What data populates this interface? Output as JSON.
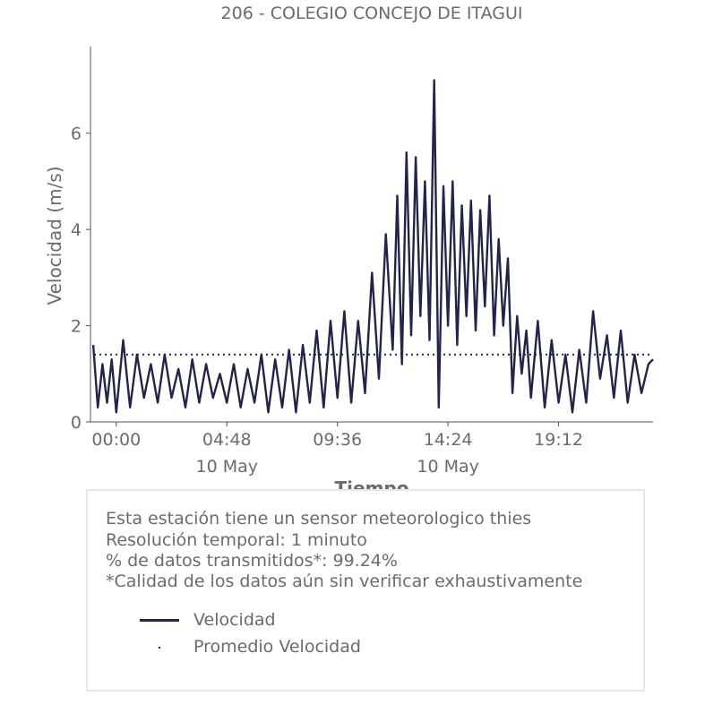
{
  "chart_data": {
    "type": "line",
    "title": "206 - COLEGIO CONCEJO DE ITAGUI",
    "xlabel": "Tiempo",
    "ylabel": "Velocidad (m/s)",
    "ylim": [
      0,
      7.8
    ],
    "yticks": [
      0,
      2,
      4,
      6
    ],
    "xlim_hours": [
      -1.12,
      23.3
    ],
    "xticks": [
      {
        "h": 0,
        "label": "00:00",
        "sub": ""
      },
      {
        "h": 4.8,
        "label": "04:48",
        "sub": "10 May"
      },
      {
        "h": 9.6,
        "label": "09:36",
        "sub": ""
      },
      {
        "h": 14.4,
        "label": "14:24",
        "sub": "10 May"
      },
      {
        "h": 19.2,
        "label": "19:12",
        "sub": ""
      }
    ],
    "grid": false,
    "series": [
      {
        "name": "Velocidad",
        "style": "line",
        "color": "#22244a",
        "x_hours": [
          -1.0,
          -0.8,
          -0.6,
          -0.4,
          -0.2,
          0.0,
          0.3,
          0.6,
          0.9,
          1.2,
          1.5,
          1.8,
          2.1,
          2.4,
          2.7,
          3.0,
          3.3,
          3.6,
          3.9,
          4.2,
          4.5,
          4.8,
          5.1,
          5.4,
          5.7,
          6.0,
          6.3,
          6.6,
          6.9,
          7.2,
          7.5,
          7.8,
          8.1,
          8.4,
          8.7,
          9.0,
          9.3,
          9.6,
          9.9,
          10.2,
          10.5,
          10.8,
          11.1,
          11.4,
          11.7,
          12.0,
          12.2,
          12.4,
          12.6,
          12.8,
          13.0,
          13.2,
          13.4,
          13.6,
          13.8,
          14.0,
          14.2,
          14.4,
          14.6,
          14.8,
          15.0,
          15.2,
          15.4,
          15.6,
          15.8,
          16.0,
          16.2,
          16.4,
          16.6,
          16.8,
          17.0,
          17.2,
          17.4,
          17.6,
          17.8,
          18.0,
          18.3,
          18.6,
          18.9,
          19.2,
          19.5,
          19.8,
          20.1,
          20.4,
          20.7,
          21.0,
          21.3,
          21.6,
          21.9,
          22.2,
          22.5,
          22.8,
          23.1,
          23.3
        ],
        "values": [
          1.6,
          0.3,
          1.2,
          0.4,
          1.3,
          0.2,
          1.7,
          0.3,
          1.4,
          0.5,
          1.2,
          0.4,
          1.4,
          0.5,
          1.1,
          0.3,
          1.3,
          0.4,
          1.2,
          0.5,
          1.0,
          0.4,
          1.2,
          0.3,
          1.1,
          0.4,
          1.4,
          0.2,
          1.3,
          0.3,
          1.5,
          0.2,
          1.6,
          0.4,
          1.9,
          0.3,
          2.1,
          0.5,
          2.3,
          0.4,
          2.1,
          0.6,
          3.1,
          0.9,
          3.9,
          1.5,
          4.7,
          1.2,
          5.6,
          1.8,
          5.5,
          2.2,
          5.0,
          1.7,
          7.1,
          0.3,
          4.9,
          2.0,
          5.0,
          1.6,
          4.5,
          2.2,
          4.6,
          1.9,
          4.4,
          2.4,
          4.7,
          1.8,
          3.8,
          2.0,
          3.4,
          0.6,
          2.2,
          1.0,
          1.9,
          0.5,
          2.1,
          0.3,
          1.7,
          0.4,
          1.4,
          0.2,
          1.5,
          0.4,
          2.3,
          0.9,
          1.8,
          0.5,
          1.9,
          0.4,
          1.4,
          0.6,
          1.2,
          1.3
        ]
      },
      {
        "name": "Promedio Velocidad",
        "style": "dotted",
        "color": "#22244a",
        "value": 1.4
      }
    ]
  },
  "infobox": {
    "lines": [
      "Esta estación tiene un sensor meteorologico thies",
      "Resolución temporal: 1 minuto",
      "% de datos transmitidos*: 99.24%",
      "*Calidad de los datos aún sin verificar exhaustivamente"
    ],
    "legend": [
      {
        "label": "Velocidad"
      },
      {
        "label": "Promedio Velocidad"
      }
    ]
  }
}
